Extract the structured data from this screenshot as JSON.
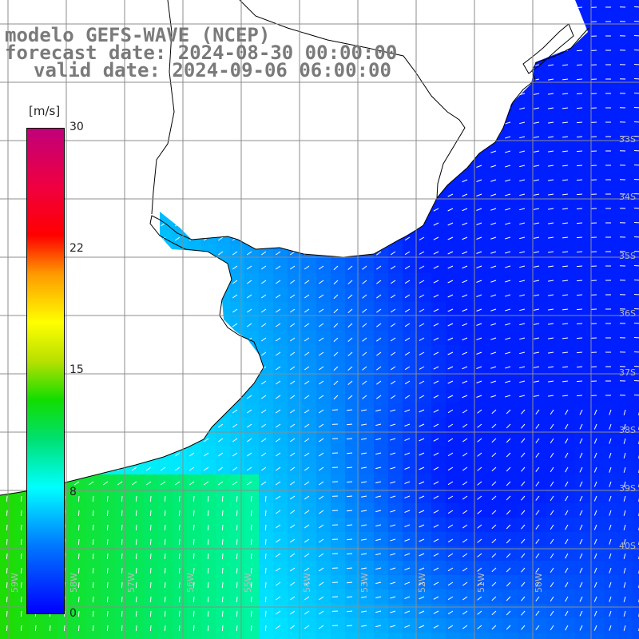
{
  "title": {
    "line1": "modelo GEFS-WAVE (NCEP)",
    "line2": "forecast date: 2024-08-30 00:00:00",
    "line3": "valid date: 2024-09-06 06:00:00"
  },
  "colorbar": {
    "units": "[m/s]",
    "ticks": [
      "30",
      "22",
      "15",
      "8",
      "0"
    ],
    "tick_values": [
      30,
      22,
      15,
      8,
      0
    ],
    "range": [
      0,
      30
    ],
    "colors": [
      "#0000ff",
      "#0078ff",
      "#00ffff",
      "#00e070",
      "#11dd00",
      "#b7e000",
      "#ffff00",
      "#ff9a00",
      "#ff0000",
      "#c0007a"
    ]
  },
  "map": {
    "field": "wind speed and direction",
    "ocean_speed_pattern": "green near southwest coast, cyan central, dark blue offshore east",
    "land_color": "#ffffff",
    "coastline_color": "#000000",
    "grid_color": "#888888",
    "arrow_color": "#ffffff",
    "lat_labels": [
      "33S",
      "34S",
      "35S",
      "36S",
      "37S",
      "38S",
      "39S",
      "40S"
    ],
    "lon_labels": [
      "59W",
      "58W",
      "57W",
      "56W",
      "55W",
      "54W",
      "53W",
      "52W",
      "51W",
      "50W"
    ]
  }
}
